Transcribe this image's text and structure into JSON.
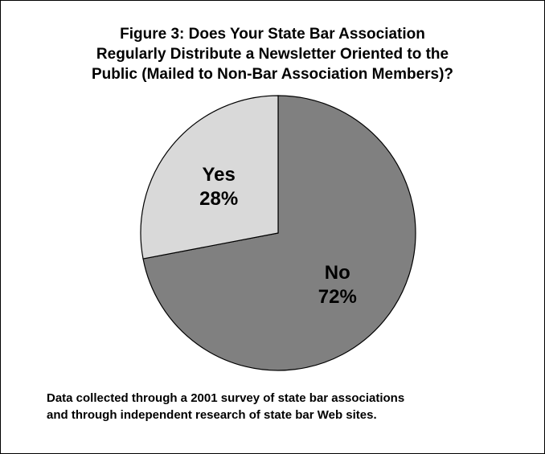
{
  "chart_data": {
    "type": "pie",
    "title_lines": [
      "Figure 3: Does Your State Bar Association",
      "Regularly Distribute a Newsletter Oriented to the",
      "Public (Mailed to Non-Bar Association Members)?"
    ],
    "slices": [
      {
        "label": "No",
        "value": 72,
        "value_label": "72%",
        "color": "#808080"
      },
      {
        "label": "Yes",
        "value": 28,
        "value_label": "28%",
        "color": "#d9d9d9"
      }
    ],
    "legend": "none"
  },
  "note_lines": [
    "Data collected through a 2001 survey of state bar associations",
    "and through independent research of state bar Web sites."
  ]
}
